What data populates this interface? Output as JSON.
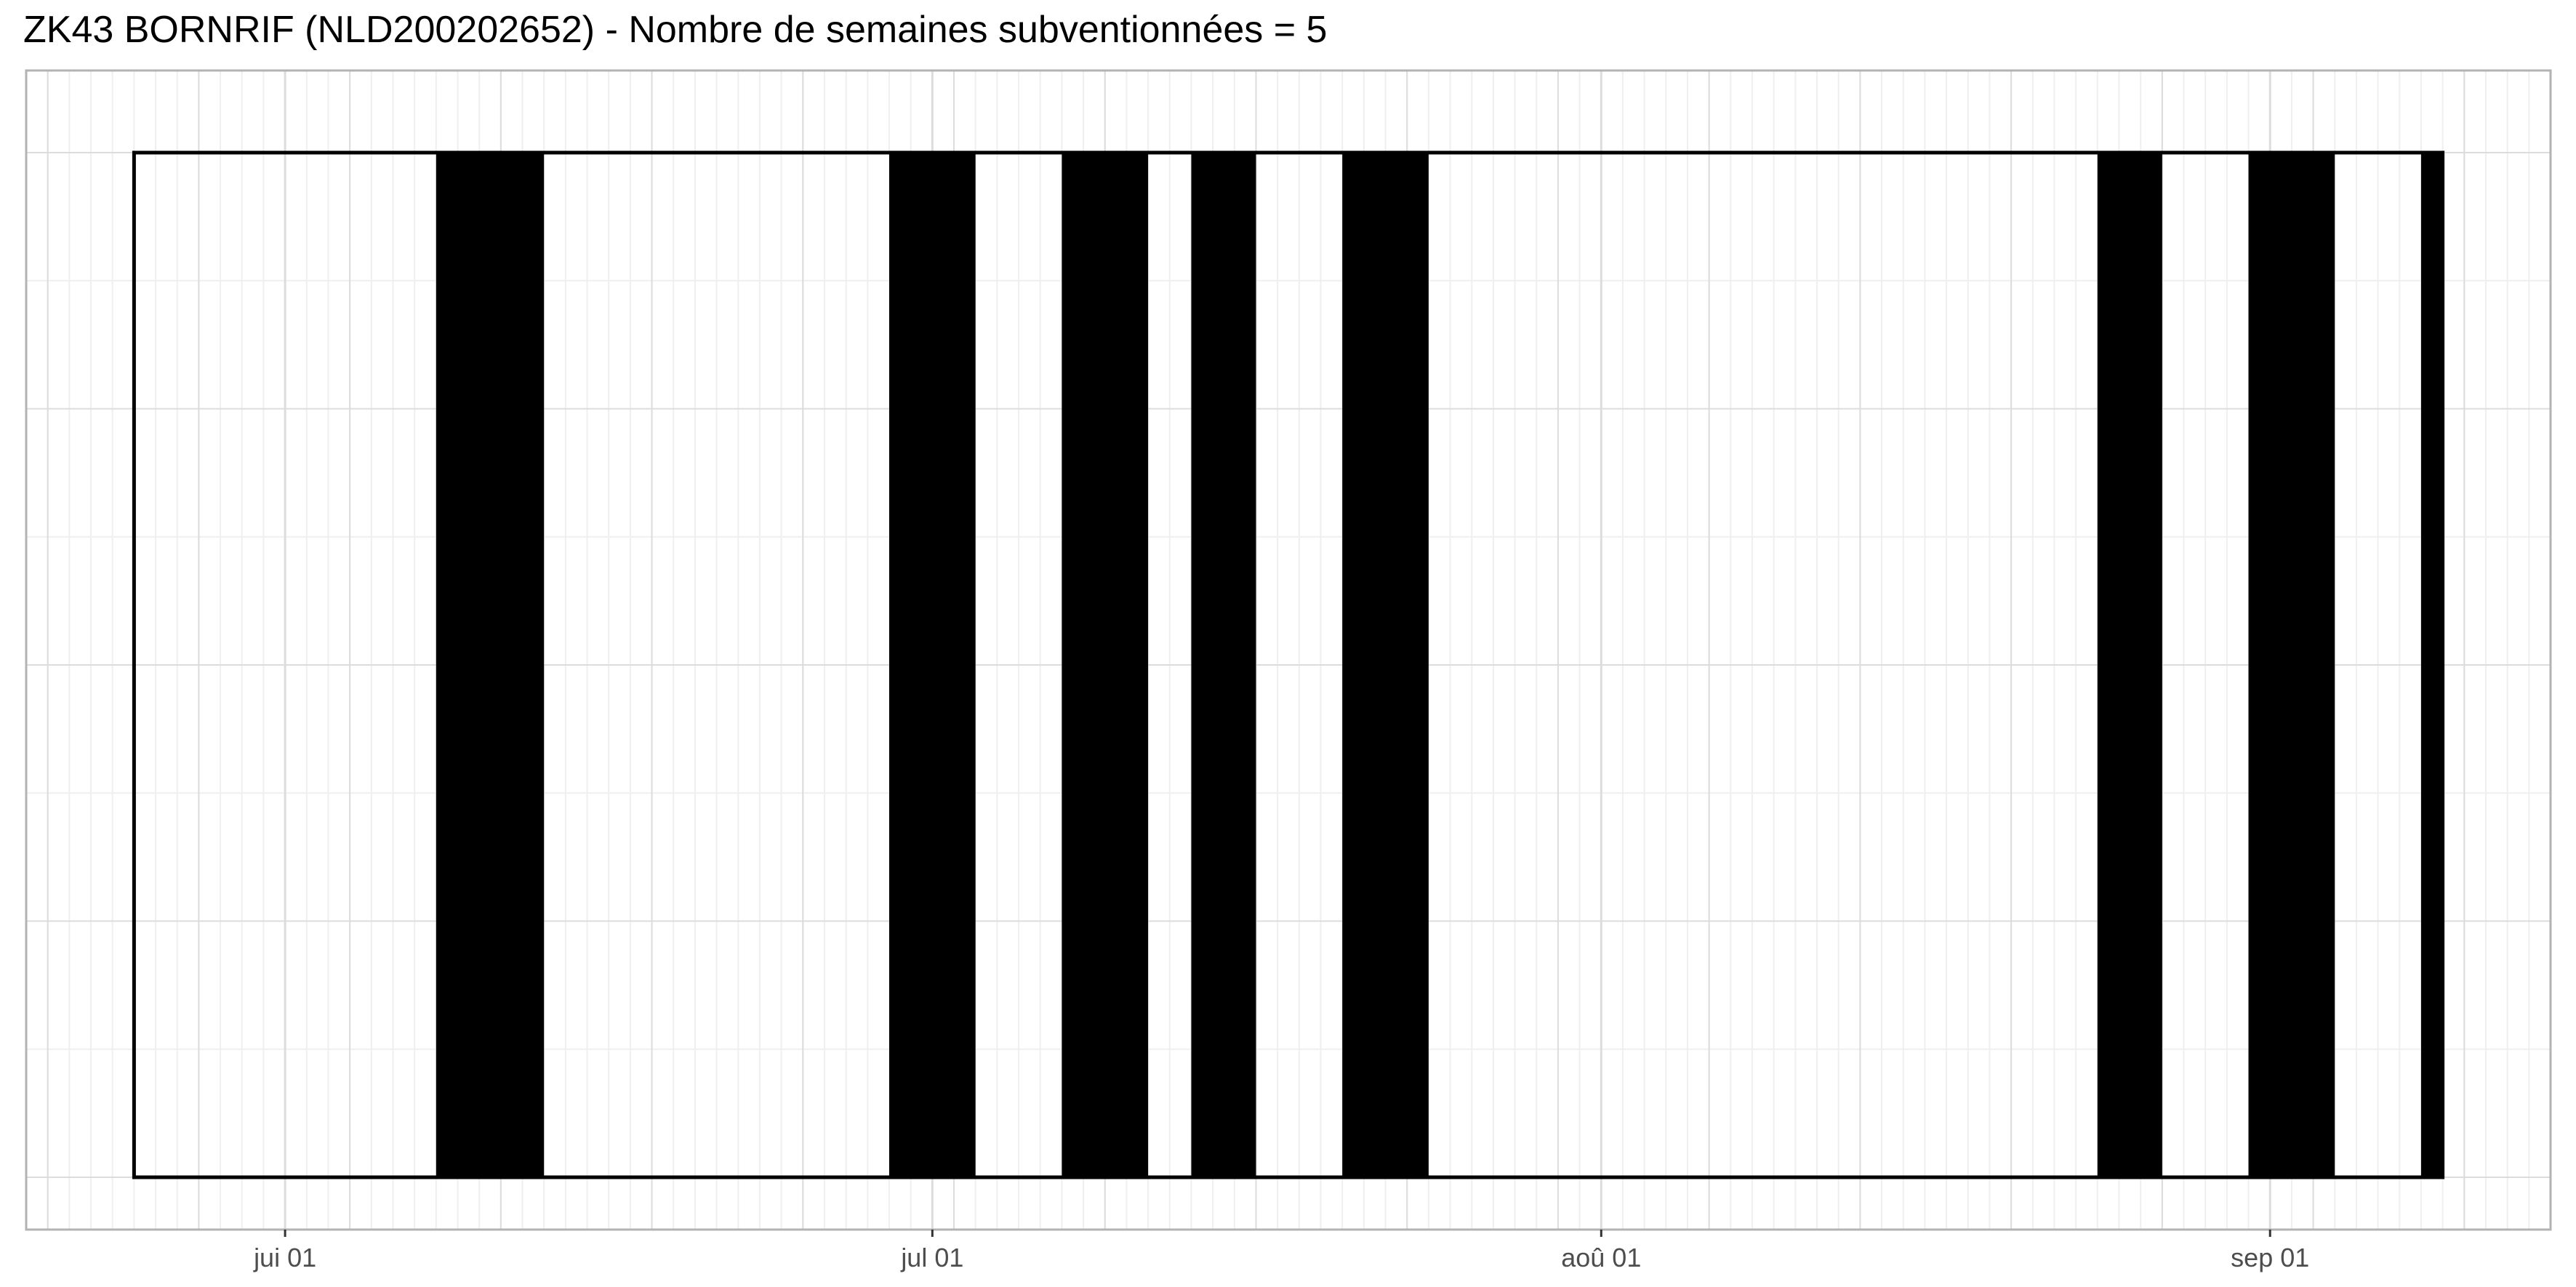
{
  "chart_data": {
    "type": "bar",
    "title": "ZK43 BORNRIF (NLD200202652) - Nombre de semaines subventionnées = 5",
    "xlabel": "",
    "ylabel": "",
    "x_axis": "date",
    "xlim": [
      "2023-05-20",
      "2023-09-14"
    ],
    "range_start": "2023-05-25",
    "range_end": "2023-09-09",
    "x_ticks": [
      {
        "date": "2023-06-01",
        "label": "jui 01"
      },
      {
        "date": "2023-07-01",
        "label": "jul 01"
      },
      {
        "date": "2023-08-01",
        "label": "aoû 01"
      },
      {
        "date": "2023-09-01",
        "label": "sep 01"
      }
    ],
    "series": [
      {
        "values": [
          {
            "start": "2023-06-08",
            "end": "2023-06-13"
          },
          {
            "start": "2023-06-29",
            "end": "2023-07-03"
          },
          {
            "start": "2023-07-07",
            "end": "2023-07-11"
          },
          {
            "start": "2023-07-13",
            "end": "2023-07-16"
          },
          {
            "start": "2023-07-20",
            "end": "2023-07-24"
          },
          {
            "start": "2023-08-24",
            "end": "2023-08-27"
          },
          {
            "start": "2023-08-31",
            "end": "2023-09-04"
          },
          {
            "start": "2023-09-08",
            "end": "2023-09-09"
          }
        ]
      }
    ],
    "grid": true,
    "colors": {
      "bar": "#000000",
      "panel_border": "#b3b3b3",
      "grid_major": "#dcdcdc",
      "grid_minor": "#efefef",
      "tick_text": "#4d4d4d"
    }
  }
}
